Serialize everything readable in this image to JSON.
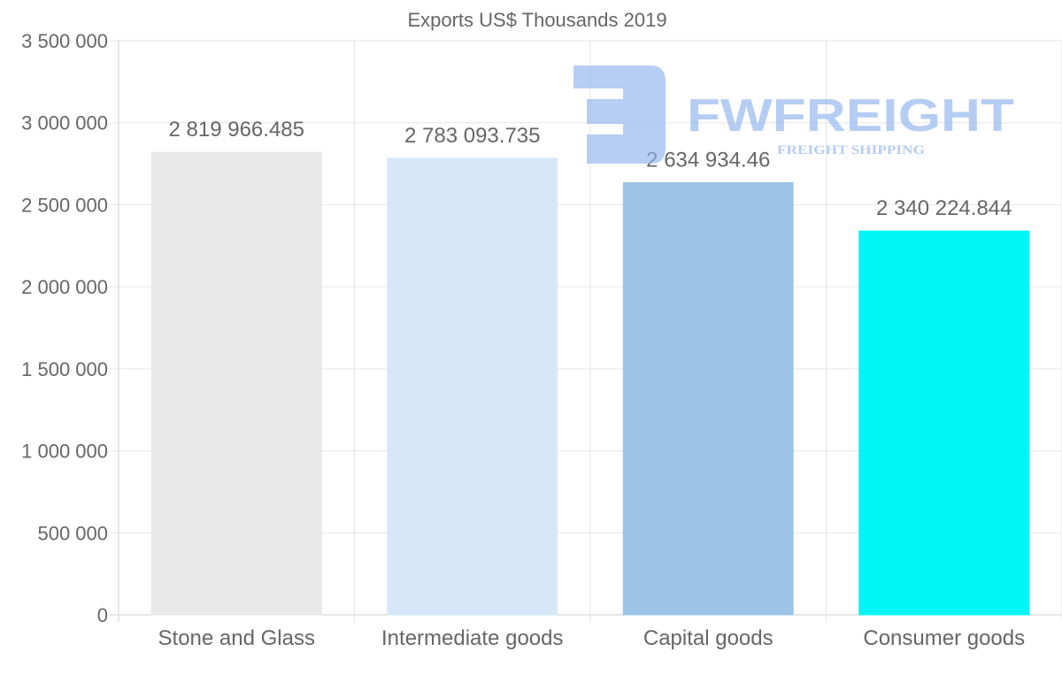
{
  "chart_data": {
    "type": "bar",
    "title": "Exports US$ Thousands 2019",
    "categories": [
      "Stone and Glass",
      "Intermediate goods",
      "Capital goods",
      "Consumer goods"
    ],
    "values": [
      2819966.485,
      2783093.735,
      2634934.46,
      2340224.844
    ],
    "value_labels": [
      "2 819 966.485",
      "2 783 093.735",
      "2 634 934.46",
      "2 340 224.844"
    ],
    "colors": [
      "#e8e8e8",
      "#d6e7f8",
      "#9bc4e6",
      "#00f5f7"
    ],
    "ylim": [
      0,
      3500000
    ],
    "yticks": [
      0,
      500000,
      1000000,
      1500000,
      2000000,
      2500000,
      3000000,
      3500000
    ],
    "ytick_labels": [
      "0",
      "500 000",
      "1 000 000",
      "1 500 000",
      "2 000 000",
      "2 500 000",
      "3 000 000",
      "3 500 000"
    ],
    "xlabel": "",
    "ylabel": "",
    "grid": true,
    "legend": "none"
  },
  "watermark": {
    "brand": "FWFREIGHT",
    "tagline": "FREIGHT SHIPPING",
    "color": "#8fb3ee"
  }
}
